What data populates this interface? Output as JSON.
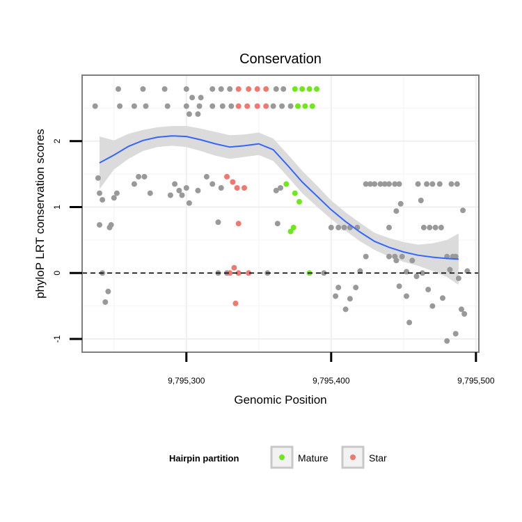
{
  "chart_data": {
    "type": "scatter",
    "title": "Conservation",
    "xlabel": "Genomic Position",
    "ylabel": "phyloP LRT conservation scores",
    "xlim": [
      9795228,
      9795502
    ],
    "ylim": [
      -1.2,
      3.0
    ],
    "x_ticks": [
      {
        "value": 9795300,
        "label": "9,795,300"
      },
      {
        "value": 9795400,
        "label": "9,795,400"
      },
      {
        "value": 9795500,
        "label": "9,795,500"
      }
    ],
    "y_ticks": [
      {
        "value": -1,
        "label": "-1"
      },
      {
        "value": 0,
        "label": "0"
      },
      {
        "value": 1,
        "label": "1"
      },
      {
        "value": 2,
        "label": "2"
      }
    ],
    "reference_line": {
      "y": 0,
      "style": "dashed"
    },
    "colors": {
      "other": "#999999",
      "Mature": "#6FE81A",
      "Star": "#F0786E",
      "smooth": "#3366FF",
      "ribbon": "#D9D9D9",
      "panel_border": "#7F7F7F"
    },
    "legend": {
      "title": "Hairpin partition",
      "position": "bottom",
      "entries": [
        {
          "label": "Mature",
          "color": "#6FE81A"
        },
        {
          "label": "Star",
          "color": "#F0786E"
        }
      ]
    },
    "series": [
      {
        "name": "Other",
        "color": "#999999",
        "points": [
          [
            9795237,
            2.53
          ],
          [
            9795254,
            2.53
          ],
          [
            9795264,
            2.53
          ],
          [
            9795272,
            2.53
          ],
          [
            9795287,
            2.53
          ],
          [
            9795300,
            2.53
          ],
          [
            9795309,
            2.53
          ],
          [
            9795318,
            2.53
          ],
          [
            9795325,
            2.53
          ],
          [
            9795331,
            2.53
          ],
          [
            9795360,
            2.53
          ],
          [
            9795366,
            2.53
          ],
          [
            9795372,
            2.53
          ],
          [
            9795253,
            2.79
          ],
          [
            9795270,
            2.79
          ],
          [
            9795285,
            2.79
          ],
          [
            9795300,
            2.79
          ],
          [
            9795318,
            2.79
          ],
          [
            9795324,
            2.79
          ],
          [
            9795330,
            2.79
          ],
          [
            9795362,
            2.79
          ],
          [
            9795367,
            2.79
          ],
          [
            9795302,
            2.41
          ],
          [
            9795308,
            2.41
          ],
          [
            9795304,
            2.66
          ],
          [
            9795310,
            2.66
          ],
          [
            9795239,
            1.44
          ],
          [
            9795240,
            1.21
          ],
          [
            9795242,
            1.11
          ],
          [
            9795240,
            0.73
          ],
          [
            9795247,
            0.69
          ],
          [
            9795248,
            0.73
          ],
          [
            9795242,
            0.0
          ],
          [
            9795244,
            -0.44
          ],
          [
            9795246,
            -0.28
          ],
          [
            9795250,
            1.14
          ],
          [
            9795252,
            1.21
          ],
          [
            9795264,
            1.35
          ],
          [
            9795267,
            1.46
          ],
          [
            9795271,
            1.46
          ],
          [
            9795275,
            1.21
          ],
          [
            9795289,
            1.18
          ],
          [
            9795292,
            1.35
          ],
          [
            9795295,
            1.25
          ],
          [
            9795297,
            1.18
          ],
          [
            9795300,
            1.29
          ],
          [
            9795302,
            1.06
          ],
          [
            9795308,
            1.25
          ],
          [
            9795314,
            1.46
          ],
          [
            9795318,
            1.35
          ],
          [
            9795322,
            0.77
          ],
          [
            9795324,
            1.29
          ],
          [
            9795322,
            0.0
          ],
          [
            9795328,
            0.0
          ],
          [
            9795356,
            0.0
          ],
          [
            9795362,
            1.25
          ],
          [
            9795365,
            1.29
          ],
          [
            9795363,
            0.75
          ],
          [
            9795395,
            0.0
          ],
          [
            9795400,
            0.69
          ],
          [
            9795405,
            0.69
          ],
          [
            9795409,
            0.69
          ],
          [
            9795413,
            0.69
          ],
          [
            9795418,
            0.69
          ],
          [
            9795403,
            -0.35
          ],
          [
            9795405,
            -0.22
          ],
          [
            9795410,
            -0.55
          ],
          [
            9795413,
            -0.39
          ],
          [
            9795417,
            -0.22
          ],
          [
            9795420,
            0.03
          ],
          [
            9795424,
            0.25
          ],
          [
            9795424,
            1.35
          ],
          [
            9795427,
            1.35
          ],
          [
            9795430,
            1.35
          ],
          [
            9795434,
            1.35
          ],
          [
            9795437,
            1.35
          ],
          [
            9795440,
            1.35
          ],
          [
            9795444,
            1.35
          ],
          [
            9795447,
            1.35
          ],
          [
            9795440,
            0.69
          ],
          [
            9795440,
            0.25
          ],
          [
            9795444,
            0.25
          ],
          [
            9795449,
            0.25
          ],
          [
            9795452,
            0.02
          ],
          [
            9795445,
            0.19
          ],
          [
            9795447,
            -0.2
          ],
          [
            9795452,
            -0.35
          ],
          [
            9795454,
            -0.75
          ],
          [
            9795460,
            1.35
          ],
          [
            9795462,
            1.1
          ],
          [
            9795466,
            1.35
          ],
          [
            9795470,
            1.35
          ],
          [
            9795475,
            1.35
          ],
          [
            9795464,
            0.69
          ],
          [
            9795468,
            0.69
          ],
          [
            9795472,
            0.69
          ],
          [
            9795476,
            0.69
          ],
          [
            9795463,
            0.0
          ],
          [
            9795467,
            -0.25
          ],
          [
            9795470,
            -0.5
          ],
          [
            9795477,
            -0.38
          ],
          [
            9795480,
            -1.03
          ],
          [
            9795483,
            1.35
          ],
          [
            9795487,
            1.35
          ],
          [
            9795480,
            0.25
          ],
          [
            9795484,
            0.25
          ],
          [
            9795486,
            0.25
          ],
          [
            9795482,
            0.05
          ],
          [
            9795488,
            -0.08
          ],
          [
            9795490,
            -0.55
          ],
          [
            9795492,
            -0.62
          ],
          [
            9795456,
            0.19
          ],
          [
            9795459,
            -0.05
          ],
          [
            9795486,
            -0.92
          ],
          [
            9795491,
            0.95
          ],
          [
            9795445,
            0.94
          ],
          [
            9795448,
            1.05
          ],
          [
            9795494,
            0.03
          ]
        ]
      },
      {
        "name": "Mature",
        "color": "#6FE81A",
        "points": [
          [
            9795375,
            2.79
          ],
          [
            9795380,
            2.79
          ],
          [
            9795385,
            2.79
          ],
          [
            9795390,
            2.79
          ],
          [
            9795377,
            2.53
          ],
          [
            9795382,
            2.53
          ],
          [
            9795387,
            2.53
          ],
          [
            9795369,
            1.35
          ],
          [
            9795375,
            1.21
          ],
          [
            9795378,
            1.08
          ],
          [
            9795374,
            0.69
          ],
          [
            9795372,
            0.63
          ],
          [
            9795385,
            0.0
          ]
        ]
      },
      {
        "name": "Star",
        "color": "#F0786E",
        "points": [
          [
            9795336,
            2.79
          ],
          [
            9795343,
            2.79
          ],
          [
            9795349,
            2.79
          ],
          [
            9795355,
            2.79
          ],
          [
            9795336,
            2.53
          ],
          [
            9795342,
            2.53
          ],
          [
            9795349,
            2.53
          ],
          [
            9795355,
            2.53
          ],
          [
            9795328,
            1.46
          ],
          [
            9795332,
            1.38
          ],
          [
            9795335,
            1.29
          ],
          [
            9795340,
            1.29
          ],
          [
            9795336,
            0.75
          ],
          [
            9795330,
            0.0
          ],
          [
            9795333,
            0.08
          ],
          [
            9795336,
            0.0
          ],
          [
            9795343,
            0.0
          ],
          [
            9795334,
            -0.46
          ]
        ]
      }
    ],
    "smooth": {
      "method": "loess",
      "points": [
        [
          9795240,
          1.67
        ],
        [
          9795250,
          1.79
        ],
        [
          9795260,
          1.92
        ],
        [
          9795270,
          2.01
        ],
        [
          9795280,
          2.06
        ],
        [
          9795290,
          2.08
        ],
        [
          9795300,
          2.07
        ],
        [
          9795310,
          2.02
        ],
        [
          9795320,
          1.96
        ],
        [
          9795330,
          1.91
        ],
        [
          9795340,
          1.93
        ],
        [
          9795350,
          1.96
        ],
        [
          9795360,
          1.87
        ],
        [
          9795370,
          1.63
        ],
        [
          9795380,
          1.38
        ],
        [
          9795390,
          1.17
        ],
        [
          9795400,
          0.96
        ],
        [
          9795410,
          0.78
        ],
        [
          9795420,
          0.62
        ],
        [
          9795430,
          0.48
        ],
        [
          9795440,
          0.39
        ],
        [
          9795450,
          0.32
        ],
        [
          9795460,
          0.27
        ],
        [
          9795470,
          0.24
        ],
        [
          9795480,
          0.22
        ],
        [
          9795488,
          0.21
        ]
      ],
      "ribbon": [
        [
          9795240,
          1.27,
          2.07
        ],
        [
          9795250,
          1.57,
          2.01
        ],
        [
          9795260,
          1.73,
          2.11
        ],
        [
          9795270,
          1.85,
          2.17
        ],
        [
          9795280,
          1.91,
          2.21
        ],
        [
          9795290,
          1.93,
          2.23
        ],
        [
          9795300,
          1.91,
          2.23
        ],
        [
          9795310,
          1.85,
          2.19
        ],
        [
          9795320,
          1.78,
          2.14
        ],
        [
          9795330,
          1.73,
          2.09
        ],
        [
          9795340,
          1.76,
          2.1
        ],
        [
          9795350,
          1.79,
          2.13
        ],
        [
          9795360,
          1.7,
          2.04
        ],
        [
          9795370,
          1.46,
          1.8
        ],
        [
          9795380,
          1.21,
          1.55
        ],
        [
          9795390,
          1.01,
          1.33
        ],
        [
          9795400,
          0.82,
          1.1
        ],
        [
          9795410,
          0.64,
          0.92
        ],
        [
          9795420,
          0.48,
          0.76
        ],
        [
          9795430,
          0.35,
          0.61
        ],
        [
          9795440,
          0.25,
          0.53
        ],
        [
          9795450,
          0.17,
          0.47
        ],
        [
          9795460,
          0.11,
          0.43
        ],
        [
          9795470,
          0.03,
          0.45
        ],
        [
          9795480,
          -0.06,
          0.5
        ],
        [
          9795488,
          -0.18,
          0.6
        ]
      ]
    }
  }
}
